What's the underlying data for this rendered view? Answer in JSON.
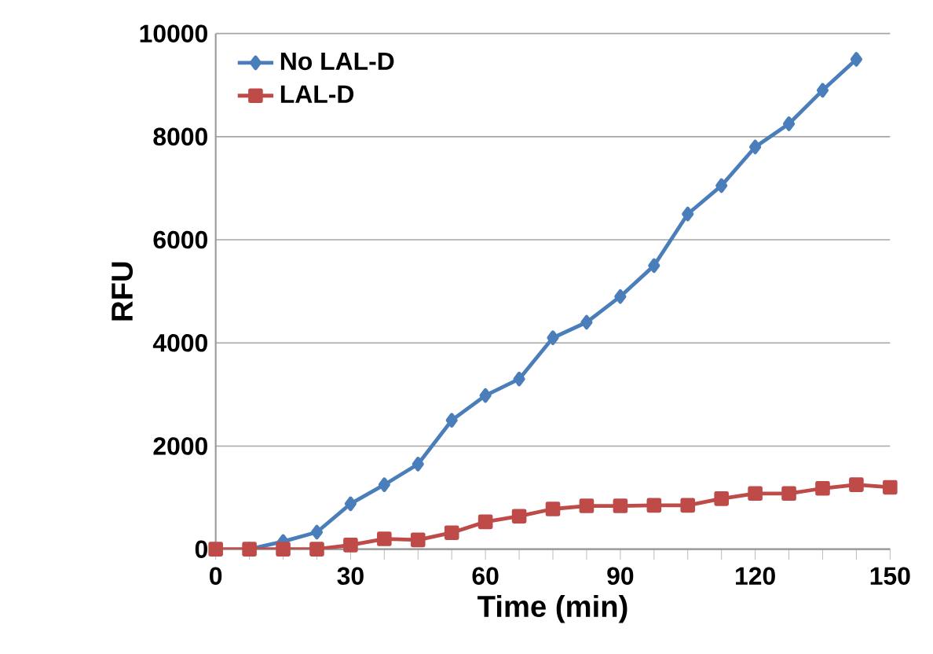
{
  "chart_data": {
    "type": "line",
    "xlabel": "Time (min)",
    "ylabel": "RFU",
    "xlim": [
      0,
      150
    ],
    "xticks": [
      0,
      30,
      60,
      90,
      120,
      150
    ],
    "ylim": [
      0,
      10000
    ],
    "yticks": [
      0,
      2000,
      4000,
      6000,
      8000,
      10000
    ],
    "grid": "y",
    "legend": "top left",
    "series": [
      {
        "name": "No LAL-D",
        "color": "#4a7ebb",
        "marker": "diamond",
        "x": [
          7.5,
          15,
          22.5,
          30,
          37.5,
          45,
          52.5,
          60,
          67.5,
          75,
          82.5,
          90,
          97.5,
          105,
          112.5,
          120,
          127.5,
          135,
          142.5
        ],
        "values": [
          0,
          150,
          330,
          880,
          1250,
          1650,
          2500,
          2980,
          3300,
          4100,
          4400,
          4900,
          5500,
          6500,
          7050,
          7800,
          8250,
          8900,
          9500
        ]
      },
      {
        "name": "LAL-D",
        "color": "#be4b48",
        "marker": "square",
        "x": [
          0,
          7.5,
          15,
          22.5,
          30,
          37.5,
          45,
          52.5,
          60,
          67.5,
          75,
          82.5,
          90,
          97.5,
          105,
          112.5,
          120,
          127.5,
          135,
          142.5,
          150
        ],
        "values": [
          0,
          0,
          0,
          0,
          80,
          200,
          180,
          320,
          530,
          640,
          780,
          840,
          840,
          850,
          850,
          980,
          1080,
          1080,
          1180,
          1250,
          1200
        ]
      }
    ]
  }
}
